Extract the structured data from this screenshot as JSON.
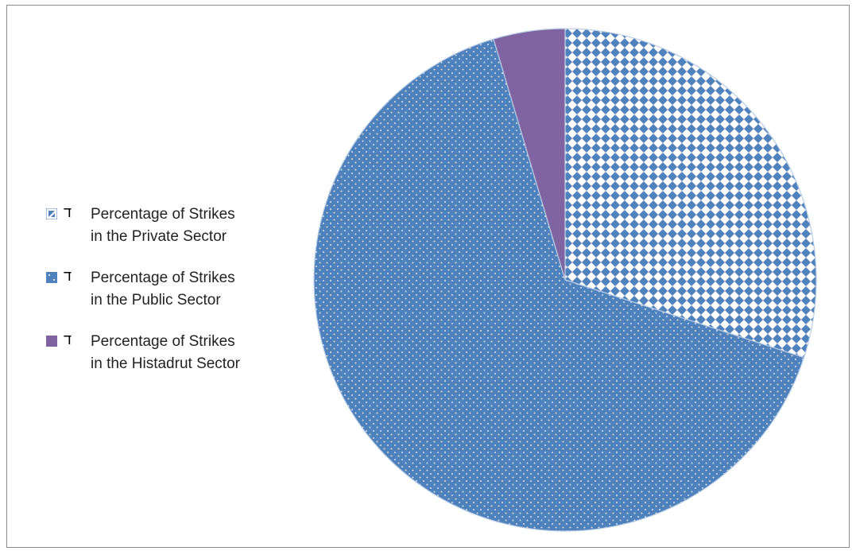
{
  "chart_data": {
    "type": "pie",
    "title": "",
    "legend_position": "left",
    "slices": [
      {
        "label_line1": "Percentage of Strikes",
        "label_line2": "in the Private Sector",
        "value": 30,
        "color": "#4f81bd",
        "pattern": "diamond-check"
      },
      {
        "label_line1": "Percentage of Strikes",
        "label_line2": "in the Public Sector",
        "value": 65.4,
        "color": "#4f81bd",
        "pattern": "dots"
      },
      {
        "label_line1": "Percentage of Strikes",
        "label_line2": "in the Histadrut Sector",
        "value": 4.6,
        "color": "#8064a2",
        "pattern": "solid"
      }
    ]
  },
  "legend": {
    "marker_glyph": "ד"
  }
}
